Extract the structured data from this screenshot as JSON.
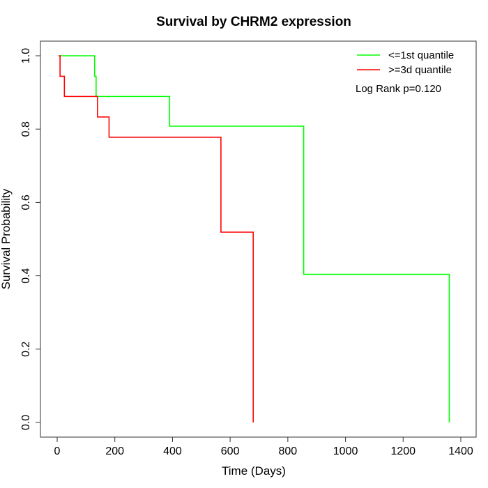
{
  "chart_data": {
    "type": "line",
    "step": true,
    "title": "Survival by CHRM2 expression",
    "xlabel": "Time (Days)",
    "ylabel": "Survival Probability",
    "xlim": [
      0,
      1400
    ],
    "ylim": [
      0,
      1
    ],
    "xticks": [
      0,
      200,
      400,
      600,
      800,
      1000,
      1200,
      1400
    ],
    "yticks": [
      0.0,
      0.2,
      0.4,
      0.6,
      0.8,
      1.0
    ],
    "xtick_labels": [
      "0",
      "200",
      "400",
      "600",
      "800",
      "1000",
      "1200",
      "1400"
    ],
    "ytick_labels": [
      "0.0",
      "0.2",
      "0.4",
      "0.6",
      "0.8",
      "1.0"
    ],
    "grid": false,
    "legend_position": "top-right",
    "annotation": "Log Rank p=0.120",
    "series": [
      {
        "name": "<=1st quantile",
        "color": "#00ff00",
        "x": [
          5,
          130,
          135,
          390,
          855,
          1360
        ],
        "y": [
          1.0,
          0.944,
          0.889,
          0.808,
          0.404,
          0.0
        ]
      },
      {
        "name": ">=3d quantile",
        "color": "#ff0000",
        "x": [
          5,
          10,
          25,
          140,
          180,
          568,
          680
        ],
        "y": [
          1.0,
          0.944,
          0.889,
          0.833,
          0.778,
          0.519,
          0.0
        ]
      }
    ]
  }
}
